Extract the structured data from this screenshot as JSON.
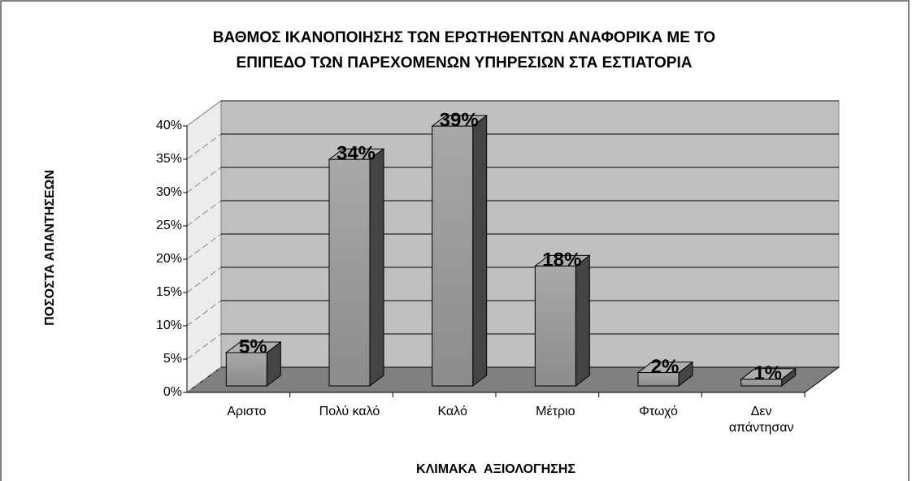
{
  "chart_data": {
    "type": "bar3d",
    "title": [
      "ΒΑΘΜΟΣ ΙΚΑΝΟΠΟΙΗΣΗΣ ΤΩΝ ΕΡΩΤΗΘΕΝΤΩΝ ΑΝΑΦΟΡΙΚΑ ΜΕ ΤΟ",
      "ΕΠΙΠΕΔΟ ΤΩΝ ΠΑΡΕΧΟΜΕΝΩΝ ΥΠΗΡΕΣΙΩΝ ΣΤΑ ΕΣΤΙΑΤΟΡΙΑ"
    ],
    "x_label": "ΚΛΙΜΑΚΑ  ΑΞΙΟΛΟΓΗΣΗΣ",
    "y_label": "ΠΟΣΟΣΤΑ ΑΠΑΝΤΗΣΕΩΝ",
    "categories": [
      "Αριστο",
      "Πολύ καλό",
      "Καλό",
      "Μέτριο",
      "Φτωχό",
      "Δεν απάντησαν"
    ],
    "values": [
      5,
      34,
      39,
      18,
      2,
      1
    ],
    "value_labels": [
      "5%",
      "34%",
      "39%",
      "18%",
      "2%",
      "1%"
    ],
    "color": "#8c8c8c",
    "ylim": [
      0,
      40
    ],
    "yticks": [
      {
        "value": 0,
        "label": "0%"
      },
      {
        "value": 5,
        "label": "5%"
      },
      {
        "value": 10,
        "label": "10%"
      },
      {
        "value": 15,
        "label": "15%"
      },
      {
        "value": 20,
        "label": "20%"
      },
      {
        "value": 25,
        "label": "25%"
      },
      {
        "value": 30,
        "label": "30%"
      },
      {
        "value": 35,
        "label": "35%"
      },
      {
        "value": 40,
        "label": "40%"
      }
    ],
    "grid": true
  }
}
